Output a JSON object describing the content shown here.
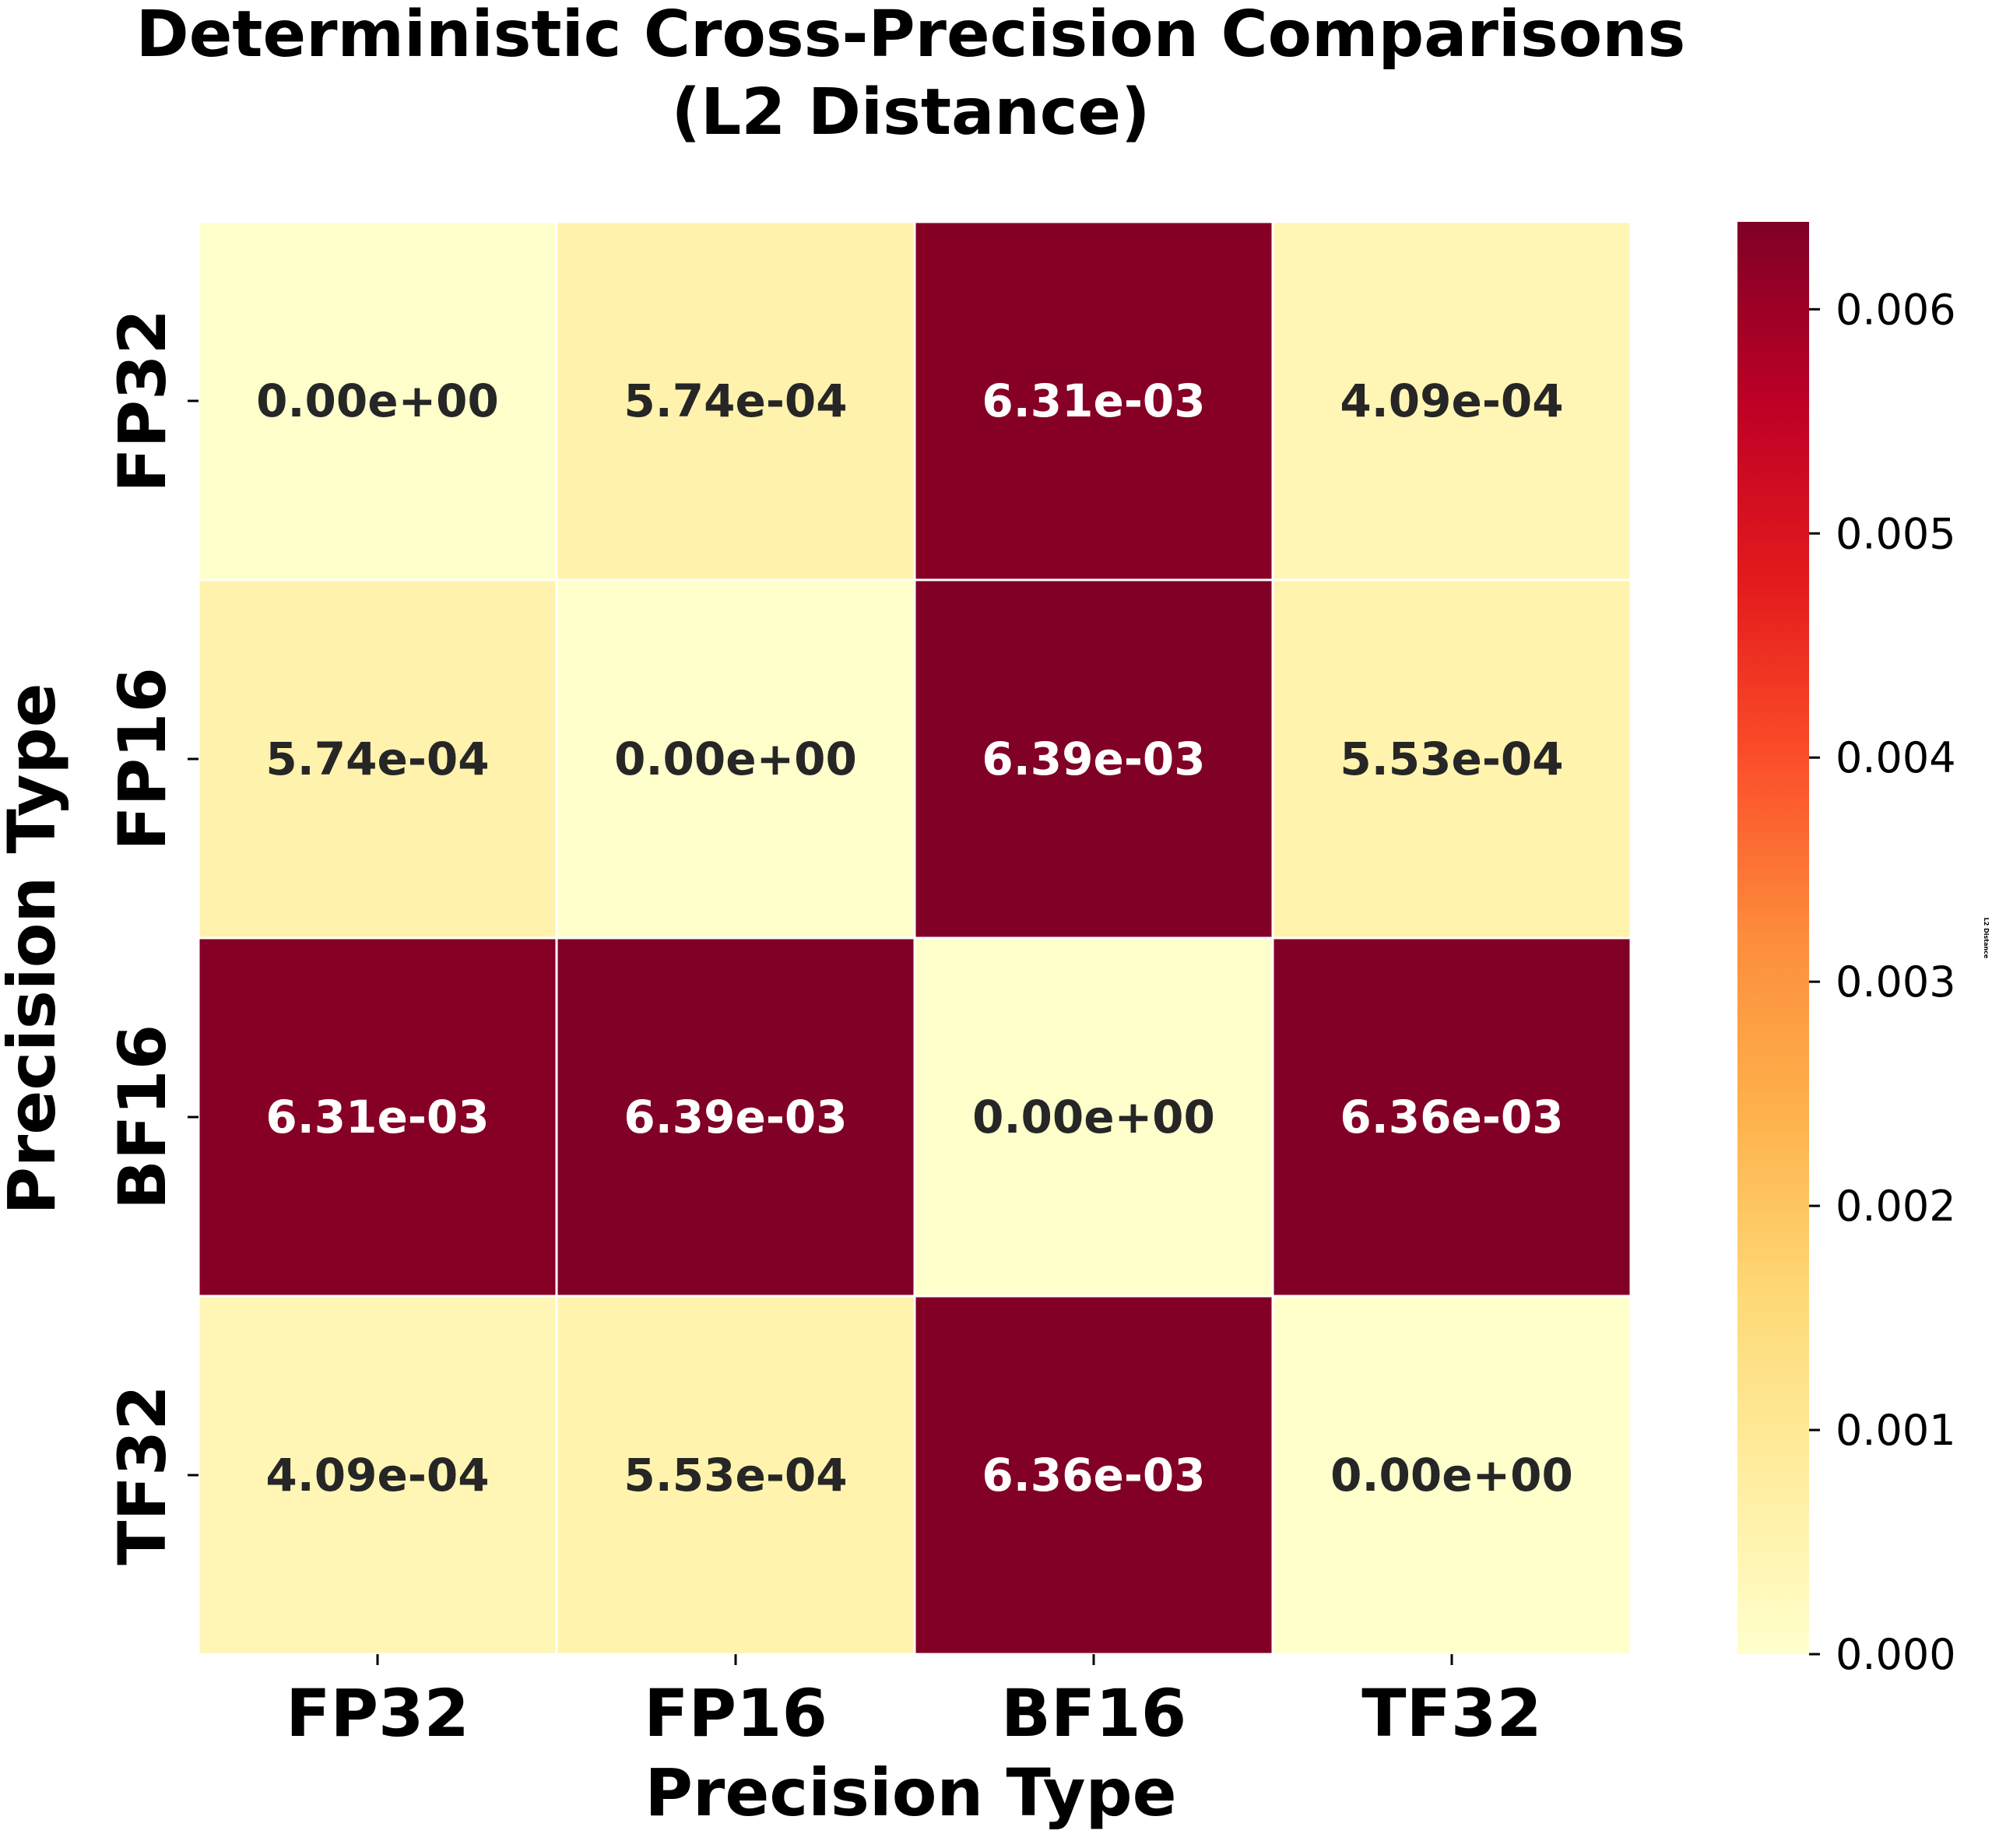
{
  "chart_data": {
    "type": "heatmap",
    "title_lines": [
      "Deterministic Cross-Precision Comparisons",
      "(L2 Distance)"
    ],
    "xlabel": "Precision Type",
    "ylabel": "Precision Type",
    "x_categories": [
      "FP32",
      "FP16",
      "BF16",
      "TF32"
    ],
    "y_categories": [
      "FP32",
      "FP16",
      "BF16",
      "TF32"
    ],
    "values": [
      [
        0.0,
        0.000574,
        0.00631,
        0.000409
      ],
      [
        0.000574,
        0.0,
        0.00639,
        0.000553
      ],
      [
        0.00631,
        0.00639,
        0.0,
        0.00636
      ],
      [
        0.000409,
        0.000553,
        0.00636,
        0.0
      ]
    ],
    "cell_labels": [
      [
        "0.00e+00",
        "5.74e-04",
        "6.31e-03",
        "4.09e-04"
      ],
      [
        "5.74e-04",
        "0.00e+00",
        "6.39e-03",
        "5.53e-04"
      ],
      [
        "6.31e-03",
        "6.39e-03",
        "0.00e+00",
        "6.36e-03"
      ],
      [
        "4.09e-04",
        "5.53e-04",
        "6.36e-03",
        "0.00e+00"
      ]
    ],
    "colorbar": {
      "label": "L2 Distance",
      "colormap": "YlOrRd",
      "vmin": 0.0,
      "vmax": 0.00639,
      "ticks": [
        0.0,
        0.001,
        0.002,
        0.003,
        0.004,
        0.005,
        0.006
      ],
      "tick_labels": [
        "0.000",
        "0.001",
        "0.002",
        "0.003",
        "0.004",
        "0.005",
        "0.006"
      ]
    }
  }
}
